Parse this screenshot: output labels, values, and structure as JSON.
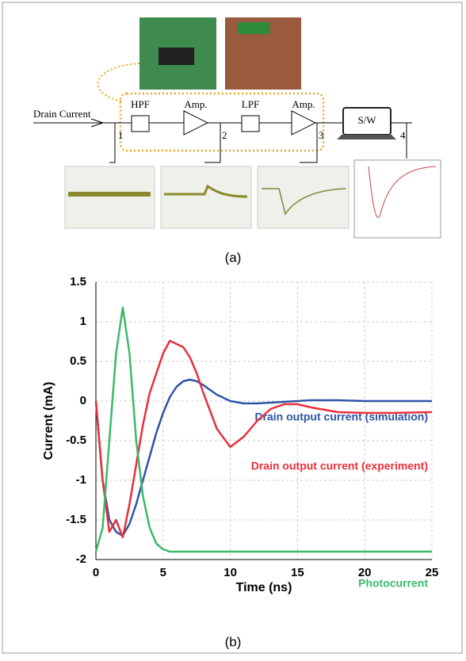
{
  "diagram": {
    "input": "Drain Current",
    "blocks": [
      "HPF",
      "Amp.",
      "LPF",
      "Amp.",
      "S/W"
    ],
    "points": [
      "1",
      "2",
      "3",
      "4"
    ],
    "caption": "(a)"
  },
  "caption": "(b)",
  "chart_data": {
    "type": "line",
    "xlabel": "Time (ns)",
    "ylabel": "Current (mA)",
    "x": [
      0,
      0.5,
      1,
      1.5,
      2,
      2.5,
      3,
      3.5,
      4,
      4.5,
      5,
      5.5,
      6,
      6.5,
      7,
      7.5,
      8,
      9,
      10,
      11,
      12,
      13,
      14,
      15,
      16,
      18,
      20,
      22,
      25
    ],
    "series": [
      {
        "name": "Drain output current (simulation)",
        "color": "#2e54a6",
        "values": [
          0,
          -1.0,
          -1.5,
          -1.65,
          -1.7,
          -1.55,
          -1.3,
          -1.0,
          -0.7,
          -0.4,
          -0.15,
          0.05,
          0.18,
          0.25,
          0.27,
          0.25,
          0.2,
          0.08,
          0,
          -0.03,
          -0.03,
          -0.02,
          -0.01,
          0,
          0.01,
          0.01,
          0,
          0,
          0
        ]
      },
      {
        "name": "Drain output current (experiment)",
        "color": "#e8303a",
        "values": [
          0,
          -1.0,
          -1.65,
          -1.5,
          -1.72,
          -1.3,
          -0.8,
          -0.3,
          0.1,
          0.35,
          0.6,
          0.76,
          0.72,
          0.68,
          0.55,
          0.35,
          0.1,
          -0.35,
          -0.58,
          -0.45,
          -0.25,
          -0.1,
          -0.04,
          -0.04,
          -0.08,
          -0.14,
          -0.15,
          -0.15,
          -0.14
        ]
      },
      {
        "name": "Photocurrent",
        "color": "#3cb96a",
        "values": [
          -1.9,
          -1.6,
          -0.5,
          0.6,
          1.18,
          0.6,
          -0.5,
          -1.2,
          -1.6,
          -1.8,
          -1.87,
          -1.9,
          -1.9,
          -1.9,
          -1.9,
          -1.9,
          -1.9,
          -1.9,
          -1.9,
          -1.9,
          -1.9,
          -1.9,
          -1.9,
          -1.9,
          -1.9,
          -1.9,
          -1.9,
          -1.9,
          -1.9
        ]
      }
    ],
    "xlim": [
      0,
      25
    ],
    "xticks": [
      0,
      5,
      10,
      15,
      20,
      25
    ],
    "ylim": [
      -2,
      1.5
    ],
    "yticks": [
      -2,
      -1.5,
      -1,
      -0.5,
      0,
      0.5,
      1,
      1.5
    ],
    "grid": true
  }
}
